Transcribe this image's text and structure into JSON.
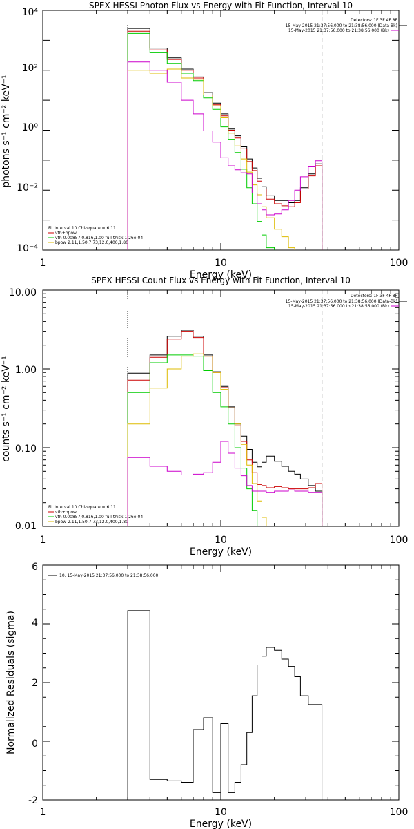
{
  "chart_data": [
    {
      "type": "line",
      "title": "SPEX HESSI Photon Flux vs Energy with Fit Function, Interval 10",
      "xlabel": "Energy (keV)",
      "ylabel": "photons s⁻¹ cm⁻² keV⁻¹",
      "xscale": "log",
      "yscale": "log",
      "xlim": [
        1,
        100
      ],
      "ylim": [
        0.0001,
        10000
      ],
      "xticks": [
        "1",
        "10",
        "100"
      ],
      "yticks": [
        "10⁻⁴",
        "10⁻²",
        "10⁰",
        "10²",
        "10⁴"
      ],
      "vlines": [
        {
          "x": 3,
          "style": "dotted"
        },
        {
          "x": 37,
          "style": "dashed"
        }
      ],
      "header_lines": [
        "Detectors: 1F 3F 4F 8F",
        "15-May-2015 21:37:56.000 to 21:38:56.000 (Data-Bk)",
        "15-May-2015 21:37:56.000 to 21:38:56.000 (Bk)"
      ],
      "fit_lines": [
        "Fit Interval 10   Chi-square = 6.11",
        "vth+bpow",
        "vth 0.00857,0.816,1.00  full thick 1.26e-04",
        "bpow 2.11,1.50,7.73,12.0,400,1.80"
      ],
      "edges": [
        3,
        4,
        5,
        6,
        7,
        8,
        9,
        10,
        11,
        12,
        13,
        14,
        15,
        16,
        17,
        18,
        20,
        22,
        24,
        26,
        28,
        31,
        34,
        37
      ],
      "series": [
        {
          "name": "Data-Bk",
          "color": "#000000",
          "values": [
            2500,
            550,
            260,
            110,
            60,
            18,
            8,
            3.5,
            1.1,
            0.65,
            0.28,
            0.11,
            0.055,
            0.025,
            0.013,
            0.0065,
            0.0045,
            0.0045,
            0.0038,
            0.0045,
            0.012,
            0.035,
            0.075
          ]
        },
        {
          "name": "vth+bpow",
          "color": "#cc0000",
          "values": [
            2000,
            480,
            230,
            100,
            55,
            15,
            7,
            3,
            1,
            0.55,
            0.24,
            0.09,
            0.045,
            0.02,
            0.011,
            0.005,
            0.0035,
            0.003,
            0.0028,
            0.0038,
            0.011,
            0.03,
            0.065
          ]
        },
        {
          "name": "vth",
          "color": "#00cc00",
          "values": [
            1700,
            400,
            170,
            80,
            45,
            12,
            5,
            1.3,
            0.5,
            0.18,
            0.05,
            0.012,
            0.0035,
            0.0009,
            0.00032,
            0.00012
          ]
        },
        {
          "name": "bpow",
          "color": "#ddbb00",
          "values": [
            100,
            80,
            110,
            55,
            50,
            15,
            6.5,
            2.6,
            0.8,
            0.3,
            0.11,
            0.04,
            0.015,
            0.007,
            0.0028,
            0.0012,
            0.0005,
            0.00028,
            0.00012
          ]
        },
        {
          "name": "Bk",
          "color": "#cc00cc",
          "values": [
            190,
            100,
            40,
            10,
            3.5,
            0.95,
            0.4,
            0.12,
            0.065,
            0.048,
            0.038,
            0.035,
            0.008,
            0.0035,
            0.0022,
            0.0015,
            0.0016,
            0.0022,
            0.0045,
            0.01,
            0.028,
            0.06,
            0.095
          ]
        }
      ]
    },
    {
      "type": "line",
      "title": "SPEX HESSI Count Flux vs Energy with Fit Function, Interval 10",
      "xlabel": "Energy (keV)",
      "ylabel": "counts s⁻¹ cm⁻² keV⁻¹",
      "xscale": "log",
      "yscale": "log",
      "xlim": [
        1,
        100
      ],
      "ylim": [
        0.01,
        10
      ],
      "xticks": [
        "1",
        "10",
        "100"
      ],
      "yticks": [
        "0.01",
        "0.10",
        "1.00",
        "10.00"
      ],
      "vlines": [
        {
          "x": 3,
          "style": "dotted"
        },
        {
          "x": 37,
          "style": "dashed"
        }
      ],
      "header_lines": [
        "Detectors: 1F 3F 4F 8F",
        "15-May-2015 21:37:56.000 to 21:38:56.000 (Data-Bk)",
        "15-May-2015 21:37:56.000 to 21:38:56.000 (Bk)"
      ],
      "fit_lines": [
        "Fit Interval 10   Chi-square = 6.11",
        "vth+bpow",
        "vth 0.00857,0.816,1.00  full thick 1.26e-04",
        "bpow 2.11,1.50,7.73,12.0,400,1.80"
      ],
      "edges": [
        3,
        4,
        5,
        6,
        7,
        8,
        9,
        10,
        11,
        12,
        13,
        14,
        15,
        16,
        17,
        18,
        20,
        22,
        24,
        26,
        28,
        31,
        34,
        37
      ],
      "series": [
        {
          "name": "Data-Bk",
          "color": "#000000",
          "values": [
            0.88,
            1.5,
            2.6,
            3.1,
            2.6,
            1.5,
            0.92,
            0.6,
            0.33,
            0.2,
            0.14,
            0.095,
            0.065,
            0.057,
            0.065,
            0.078,
            0.067,
            0.058,
            0.05,
            0.046,
            0.04,
            0.033,
            0.028
          ]
        },
        {
          "name": "vth+bpow",
          "color": "#cc0000",
          "values": [
            0.72,
            1.4,
            2.4,
            3.0,
            2.5,
            1.45,
            0.9,
            0.58,
            0.32,
            0.19,
            0.12,
            0.07,
            0.048,
            0.034,
            0.033,
            0.031,
            0.032,
            0.031,
            0.03,
            0.03,
            0.03,
            0.031,
            0.035
          ]
        },
        {
          "name": "vth",
          "color": "#00cc00",
          "values": [
            0.5,
            1.2,
            1.5,
            1.5,
            1.45,
            0.95,
            0.5,
            0.33,
            0.2,
            0.1,
            0.055,
            0.03,
            0.016,
            0.0095
          ]
        },
        {
          "name": "bpow",
          "color": "#ddbb00",
          "values": [
            0.2,
            0.57,
            1.0,
            1.45,
            1.55,
            1.45,
            0.9,
            0.55,
            0.32,
            0.2,
            0.11,
            0.06,
            0.035,
            0.021,
            0.013,
            0.0085
          ]
        },
        {
          "name": "Bk",
          "color": "#cc00cc",
          "values": [
            0.075,
            0.058,
            0.05,
            0.045,
            0.046,
            0.048,
            0.065,
            0.12,
            0.085,
            0.055,
            0.044,
            0.033,
            0.028,
            0.028,
            0.028,
            0.027,
            0.028,
            0.028,
            0.029,
            0.028,
            0.028,
            0.027,
            0.027
          ]
        }
      ]
    },
    {
      "type": "line",
      "title": "",
      "xlabel": "Energy (keV)",
      "ylabel": "Normalized Residuals (sigma)",
      "xscale": "log",
      "yscale": "linear",
      "xlim": [
        1,
        100
      ],
      "ylim": [
        -2,
        6
      ],
      "xticks": [
        "1",
        "10",
        "100"
      ],
      "yticks": [
        "-2",
        "0",
        "2",
        "4",
        "6"
      ],
      "legend": "10. 15-May-2015 21:37:56.000 to 21:38:56.000",
      "edges": [
        3,
        4,
        5,
        6,
        7,
        8,
        9,
        10,
        11,
        12,
        13,
        14,
        15,
        16,
        17,
        18,
        20,
        22,
        24,
        26,
        28,
        31,
        34,
        37
      ],
      "series": [
        {
          "name": "residuals",
          "color": "#000000",
          "values": [
            4.45,
            -1.3,
            -1.35,
            -1.4,
            0.4,
            0.8,
            -1.75,
            0.6,
            -1.75,
            -1.4,
            -0.8,
            0.3,
            1.55,
            2.6,
            2.9,
            3.2,
            3.1,
            2.8,
            2.55,
            2.2,
            1.55,
            1.25,
            1.25
          ]
        }
      ]
    }
  ]
}
